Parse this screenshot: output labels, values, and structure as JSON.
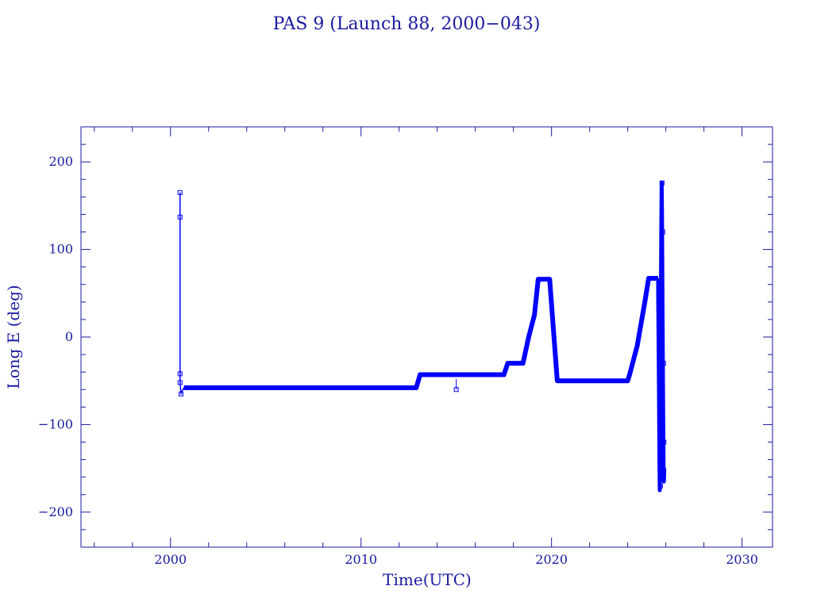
{
  "chart_data": {
    "type": "line",
    "title": "PAS 9 (Launch 88, 2000−043)",
    "xlabel": "Time(UTC)",
    "ylabel": "Long E (deg)",
    "xlim": [
      1995.3,
      2031.6
    ],
    "ylim": [
      -240,
      240
    ],
    "x_ticks": [
      2000,
      2010,
      2020,
      2030
    ],
    "x_tick_labels": [
      "2000",
      "2010",
      "2020",
      "2030"
    ],
    "y_ticks": [
      -200,
      -100,
      0,
      100,
      200
    ],
    "y_tick_labels": [
      "−200",
      "−100",
      "0",
      "100",
      "200"
    ],
    "grid": false,
    "colors": {
      "frame": "#1a1aa0",
      "text": "#1a1aa0",
      "series": "#0000ff"
    },
    "series": [
      {
        "segments": [
          {
            "points": [
              [
                2000.5,
                165
              ],
              [
                2000.5,
                137
              ],
              [
                2000.5,
                85
              ],
              [
                2000.5,
                -42
              ],
              [
                2000.5,
                -52
              ],
              [
                2000.55,
                -65
              ],
              [
                2000.6,
                -62
              ],
              [
                2000.7,
                -58
              ]
            ],
            "width": 1.5
          },
          {
            "points": [
              [
                2000.7,
                -58
              ],
              [
                2012.9,
                -58
              ],
              [
                2013.1,
                -43
              ],
              [
                2017.5,
                -43
              ],
              [
                2017.7,
                -30
              ],
              [
                2018.5,
                -30
              ],
              [
                2018.8,
                0
              ],
              [
                2019.1,
                25
              ],
              [
                2019.3,
                66
              ],
              [
                2019.9,
                66
              ],
              [
                2020.3,
                -50
              ],
              [
                2024.0,
                -50
              ],
              [
                2024.1,
                -43
              ],
              [
                2024.5,
                -10
              ],
              [
                2024.9,
                40
              ],
              [
                2025.1,
                67
              ],
              [
                2025.6,
                67
              ]
            ],
            "width": 6
          },
          {
            "points": [
              [
                2025.6,
                67
              ],
              [
                2025.6,
                50
              ],
              [
                2025.62,
                0
              ],
              [
                2025.64,
                -60
              ],
              [
                2025.66,
                -130
              ],
              [
                2025.68,
                -175
              ],
              [
                2025.7,
                -140
              ],
              [
                2025.72,
                -60
              ],
              [
                2025.74,
                40
              ],
              [
                2025.76,
                120
              ],
              [
                2025.78,
                176
              ],
              [
                2025.8,
                140
              ],
              [
                2025.82,
                60
              ],
              [
                2025.84,
                -20
              ],
              [
                2025.86,
                -90
              ],
              [
                2025.88,
                -150
              ],
              [
                2025.9,
                -165
              ],
              [
                2025.92,
                -150
              ]
            ],
            "width": 5
          }
        ],
        "markers": [
          [
            2000.5,
            165
          ],
          [
            2000.5,
            137
          ],
          [
            2000.5,
            -42
          ],
          [
            2000.5,
            -52
          ],
          [
            2000.55,
            -65
          ],
          [
            2015.0,
            -60
          ],
          [
            2025.62,
            50
          ],
          [
            2025.64,
            20
          ],
          [
            2025.66,
            -20
          ],
          [
            2025.7,
            -100
          ],
          [
            2025.72,
            -170
          ],
          [
            2025.8,
            176
          ],
          [
            2025.84,
            120
          ],
          [
            2025.88,
            -30
          ],
          [
            2025.9,
            -120
          ]
        ],
        "isolated_points": [
          {
            "points": [
              [
                2015.0,
                -48
              ],
              [
                2015.0,
                -60
              ]
            ]
          }
        ]
      }
    ]
  }
}
